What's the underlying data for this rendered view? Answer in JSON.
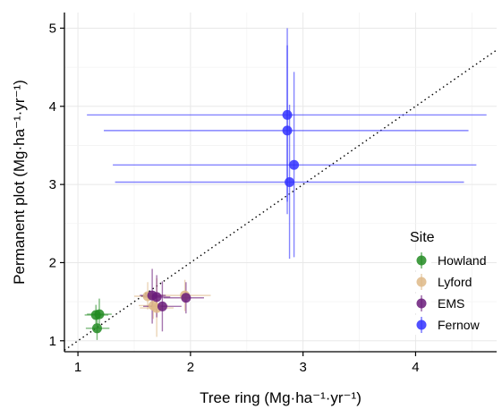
{
  "chart_data": {
    "type": "scatter",
    "xlabel": "Tree ring (Mg·ha⁻¹·yr⁻¹)",
    "ylabel": "Permanent plot (Mg·ha⁻¹·yr⁻¹)",
    "xlim": [
      0.88,
      4.72
    ],
    "ylim": [
      0.86,
      5.2
    ],
    "x_ticks": [
      "1",
      "2",
      "3",
      "4"
    ],
    "y_ticks": [
      "1",
      "2",
      "3",
      "4",
      "5"
    ],
    "grid": true,
    "reference_line": {
      "type": "1:1 dotted",
      "slope": 1,
      "intercept": 0
    },
    "legend": {
      "title": "Site",
      "placement": "right"
    },
    "series": [
      {
        "name": "Howland",
        "color": "#228B22",
        "points": [
          {
            "x": 1.16,
            "y": 1.33,
            "xerr": [
              1.06,
              1.27
            ],
            "yerr": [
              1.22,
              1.46
            ]
          },
          {
            "x": 1.19,
            "y": 1.34,
            "xerr": [
              1.08,
              1.3
            ],
            "yerr": [
              1.2,
              1.54
            ]
          },
          {
            "x": 1.17,
            "y": 1.16,
            "xerr": [
              1.07,
              1.28
            ],
            "yerr": [
              1.01,
              1.31
            ]
          }
        ]
      },
      {
        "name": "Lyford",
        "color": "#DEB887",
        "points": [
          {
            "x": 1.62,
            "y": 1.57,
            "xerr": [
              1.5,
              1.74
            ],
            "yerr": [
              1.4,
              1.75
            ]
          },
          {
            "x": 1.67,
            "y": 1.45,
            "xerr": [
              1.54,
              1.8
            ],
            "yerr": [
              1.28,
              1.62
            ]
          },
          {
            "x": 1.95,
            "y": 1.58,
            "xerr": [
              1.73,
              2.18
            ],
            "yerr": [
              1.38,
              1.78
            ]
          },
          {
            "x": 1.7,
            "y": 1.42,
            "xerr": [
              1.55,
              1.85
            ],
            "yerr": [
              1.05,
              1.8
            ]
          }
        ]
      },
      {
        "name": "EMS",
        "color": "#6A1B7A",
        "points": [
          {
            "x": 1.66,
            "y": 1.58,
            "xerr": [
              1.55,
              1.78
            ],
            "yerr": [
              1.22,
              1.92
            ]
          },
          {
            "x": 1.7,
            "y": 1.56,
            "xerr": [
              1.58,
              1.82
            ],
            "yerr": [
              1.3,
              1.84
            ]
          },
          {
            "x": 1.75,
            "y": 1.44,
            "xerr": [
              1.58,
              1.92
            ],
            "yerr": [
              1.12,
              1.76
            ]
          },
          {
            "x": 1.96,
            "y": 1.55,
            "xerr": [
              1.76,
              2.12
            ],
            "yerr": [
              1.35,
              1.75
            ]
          }
        ]
      },
      {
        "name": "Fernow",
        "color": "#3333FF",
        "points": [
          {
            "x": 2.86,
            "y": 3.89,
            "xerr": [
              1.08,
              4.63
            ],
            "yerr": [
              2.78,
              5.0
            ]
          },
          {
            "x": 2.86,
            "y": 3.69,
            "xerr": [
              1.23,
              4.47
            ],
            "yerr": [
              2.62,
              4.78
            ]
          },
          {
            "x": 2.92,
            "y": 3.25,
            "xerr": [
              1.31,
              4.54
            ],
            "yerr": [
              2.07,
              4.44
            ]
          },
          {
            "x": 2.88,
            "y": 3.03,
            "xerr": [
              1.33,
              4.43
            ],
            "yerr": [
              2.05,
              4.02
            ]
          }
        ]
      }
    ]
  }
}
